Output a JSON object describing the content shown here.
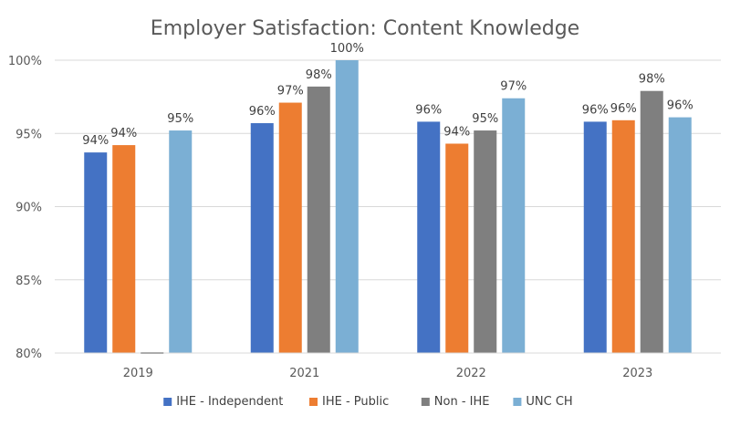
{
  "chart_data": {
    "type": "bar",
    "title": "Employer Satisfaction: Content Knowledge",
    "xlabel": "",
    "ylabel": "",
    "categories": [
      "2019",
      "2021",
      "2022",
      "2023"
    ],
    "ylim": [
      80,
      100
    ],
    "yticks": [
      80,
      85,
      90,
      95,
      100
    ],
    "ytick_labels": [
      "80%",
      "85%",
      "90%",
      "95%",
      "100%"
    ],
    "grid": true,
    "legend_position": "bottom",
    "series": [
      {
        "name": "IHE - Independent",
        "color": "#4472C4",
        "values": [
          93.7,
          95.7,
          95.8,
          95.8
        ],
        "labels": [
          "94%",
          "96%",
          "96%",
          "96%"
        ]
      },
      {
        "name": "IHE - Public",
        "color": "#ED7D31",
        "values": [
          94.2,
          97.1,
          94.3,
          95.9
        ],
        "labels": [
          "94%",
          "97%",
          "94%",
          "96%"
        ]
      },
      {
        "name": "Non - IHE",
        "color": "#7F7F7F",
        "values": [
          null,
          98.2,
          95.2,
          97.9
        ],
        "labels": [
          null,
          "98%",
          "95%",
          "98%"
        ]
      },
      {
        "name": "UNC CH",
        "color": "#7BAFD4",
        "values": [
          95.2,
          100.0,
          97.4,
          96.1
        ],
        "labels": [
          "95%",
          "100%",
          "97%",
          "96%"
        ]
      }
    ]
  }
}
